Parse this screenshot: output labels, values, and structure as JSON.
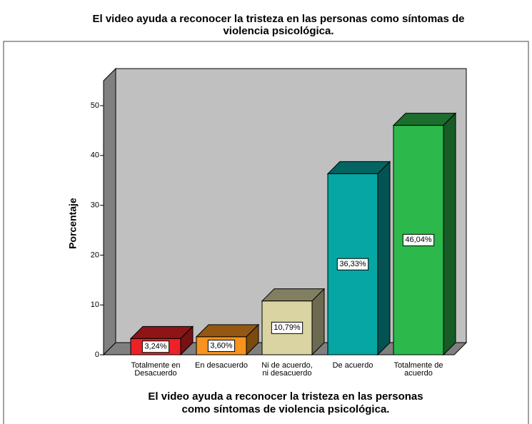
{
  "chart_data": {
    "type": "bar3d",
    "title": [
      "El video ayuda a reconocer la tristeza en las personas como síntomas de",
      "violencia psicológica."
    ],
    "xlabel": [
      "El video ayuda a reconocer la tristeza en las personas",
      "como síntomas de violencia psicológica."
    ],
    "ylabel": "Porcentaje",
    "categories": [
      [
        "Totalmente en",
        "Desacuerdo"
      ],
      [
        "En desacuerdo"
      ],
      [
        "Ni de acuerdo,",
        "ni desacuerdo"
      ],
      [
        "De acuerdo"
      ],
      [
        "Totalmente de",
        "acuerdo"
      ]
    ],
    "values": [
      3.24,
      3.6,
      10.79,
      36.33,
      46.04
    ],
    "value_labels": [
      "3,24%",
      "3,60%",
      "10,79%",
      "36,33%",
      "46,04%"
    ],
    "colors": [
      "#ec2227",
      "#f7931e",
      "#d9d4a1",
      "#05a6a3",
      "#2db84b"
    ],
    "ylim": [
      0,
      55
    ],
    "yticks": [
      0,
      10,
      20,
      30,
      40,
      50
    ]
  }
}
